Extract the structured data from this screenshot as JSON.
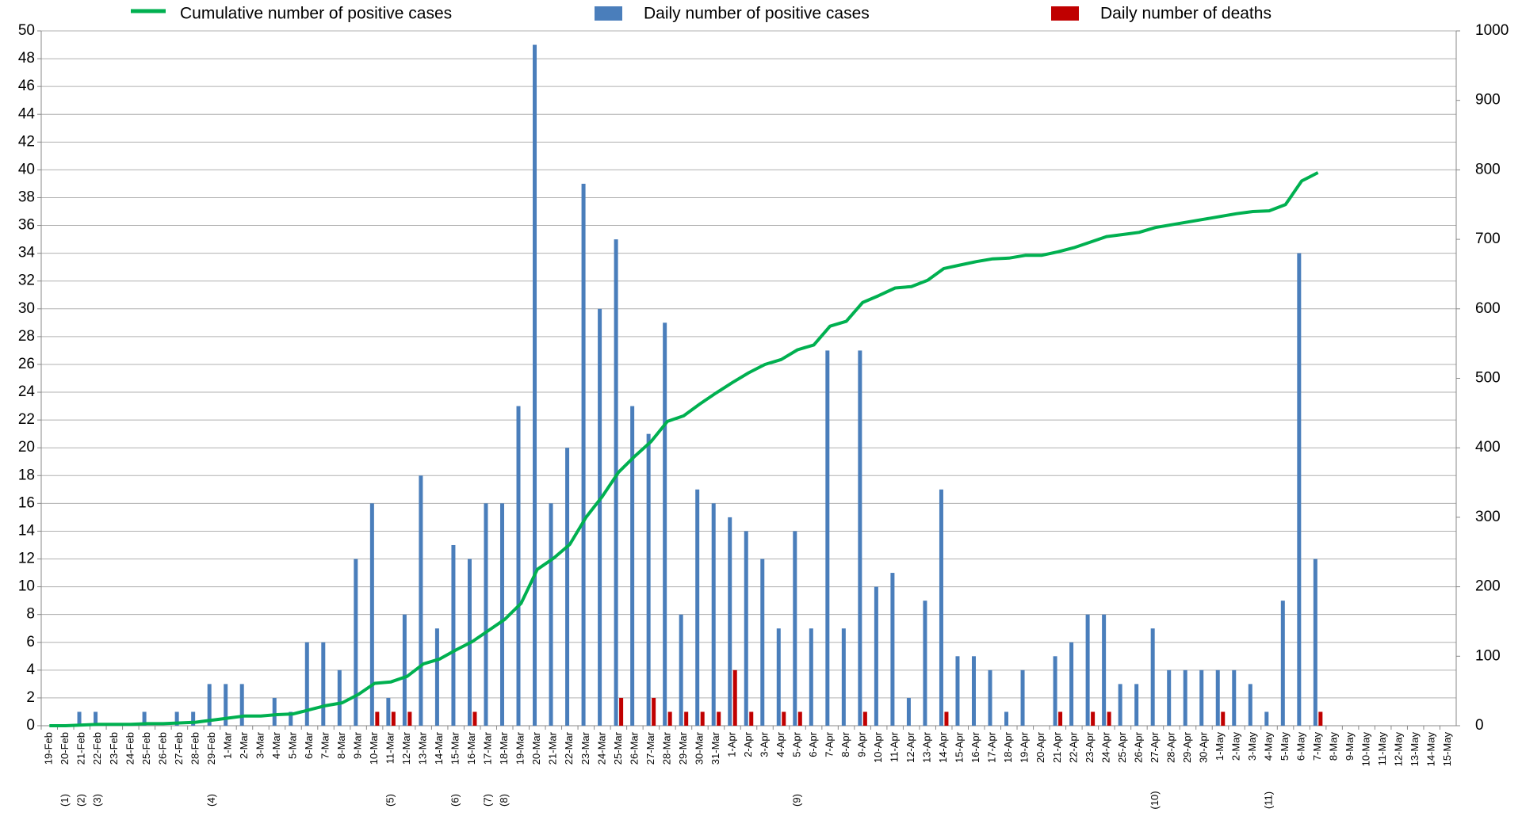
{
  "chart_data": {
    "type": "combo",
    "legend": "top",
    "grid": true,
    "categories": [
      "19-Feb",
      "20-Feb",
      "21-Feb",
      "22-Feb",
      "23-Feb",
      "24-Feb",
      "25-Feb",
      "26-Feb",
      "27-Feb",
      "28-Feb",
      "29-Feb",
      "1-Mar",
      "2-Mar",
      "3-Mar",
      "4-Mar",
      "5-Mar",
      "6-Mar",
      "7-Mar",
      "8-Mar",
      "9-Mar",
      "10-Mar",
      "11-Mar",
      "12-Mar",
      "13-Mar",
      "14-Mar",
      "15-Mar",
      "16-Mar",
      "17-Mar",
      "18-Mar",
      "19-Mar",
      "20-Mar",
      "21-Mar",
      "22-Mar",
      "23-Mar",
      "24-Mar",
      "25-Mar",
      "26-Mar",
      "27-Mar",
      "28-Mar",
      "29-Mar",
      "30-Mar",
      "31-Mar",
      "1-Apr",
      "2-Apr",
      "3-Apr",
      "4-Apr",
      "5-Apr",
      "6-Apr",
      "7-Apr",
      "8-Apr",
      "9-Apr",
      "10-Apr",
      "11-Apr",
      "12-Apr",
      "13-Apr",
      "14-Apr",
      "15-Apr",
      "16-Apr",
      "17-Apr",
      "18-Apr",
      "19-Apr",
      "20-Apr",
      "21-Apr",
      "22-Apr",
      "23-Apr",
      "24-Apr",
      "25-Apr",
      "26-Apr",
      "27-Apr",
      "28-Apr",
      "29-Apr",
      "30-Apr",
      "1-May",
      "2-May",
      "3-May",
      "4-May",
      "5-May",
      "6-May",
      "7-May",
      "8-May",
      "9-May",
      "10-May",
      "11-May",
      "12-May",
      "13-May",
      "14-May",
      "15-May"
    ],
    "annotations": [
      null,
      "(1)",
      "(2)",
      "(3)",
      null,
      null,
      null,
      null,
      null,
      null,
      "(4)",
      null,
      null,
      null,
      null,
      null,
      null,
      null,
      null,
      null,
      null,
      "(5)",
      null,
      null,
      null,
      "(6)",
      null,
      "(7)",
      "(8)",
      null,
      null,
      null,
      null,
      null,
      null,
      null,
      null,
      null,
      null,
      null,
      null,
      null,
      null,
      null,
      null,
      null,
      "(9)",
      null,
      null,
      null,
      null,
      null,
      null,
      null,
      null,
      null,
      null,
      null,
      null,
      null,
      null,
      null,
      null,
      null,
      null,
      null,
      null,
      null,
      "(10)",
      null,
      null,
      null,
      null,
      null,
      null,
      "(11)",
      null,
      null,
      null,
      null,
      null,
      null,
      null,
      null,
      null,
      null,
      null
    ],
    "series": [
      {
        "name": "Cumulative number of positive cases",
        "type": "line",
        "axis": "y2",
        "color": "#00b050",
        "values": [
          0,
          0,
          1,
          2,
          2,
          2,
          3,
          3,
          4,
          5,
          8,
          11,
          14,
          14,
          16,
          17,
          23,
          29,
          33,
          45,
          61,
          63,
          71,
          89,
          96,
          109,
          121,
          137,
          153,
          176,
          225,
          241,
          261,
          300,
          330,
          365,
          388,
          409,
          438,
          446,
          463,
          479,
          494,
          508,
          520,
          527,
          541,
          548,
          575,
          582,
          609,
          619,
          630,
          632,
          641,
          658,
          663,
          668,
          672,
          673,
          677,
          677,
          682,
          688,
          696,
          704,
          707,
          710,
          717,
          721,
          725,
          729,
          733,
          737,
          740,
          741,
          750,
          784,
          796,
          null,
          null,
          null,
          null,
          null,
          null,
          null,
          null
        ]
      },
      {
        "name": "Daily number of positive cases",
        "type": "bar",
        "color": "#4a7ebb",
        "values": [
          0,
          0,
          1,
          1,
          0,
          0,
          1,
          0,
          1,
          1,
          3,
          3,
          3,
          0,
          2,
          1,
          6,
          6,
          4,
          12,
          16,
          2,
          8,
          18,
          7,
          13,
          12,
          16,
          16,
          23,
          49,
          16,
          20,
          39,
          30,
          35,
          23,
          21,
          29,
          8,
          17,
          16,
          15,
          14,
          12,
          7,
          14,
          7,
          27,
          7,
          27,
          10,
          11,
          2,
          9,
          17,
          5,
          5,
          4,
          1,
          4,
          0,
          5,
          6,
          8,
          8,
          3,
          3,
          7,
          4,
          4,
          4,
          4,
          4,
          3,
          1,
          9,
          34,
          12,
          null,
          null,
          null,
          null,
          null,
          null,
          null,
          null
        ]
      },
      {
        "name": "Daily number of deaths",
        "type": "bar",
        "color": "#c00000",
        "values": [
          0,
          0,
          0,
          0,
          0,
          0,
          0,
          0,
          0,
          0,
          0,
          0,
          0,
          0,
          0,
          0,
          0,
          0,
          0,
          0,
          1,
          1,
          1,
          0,
          0,
          0,
          1,
          0,
          0,
          0,
          0,
          0,
          0,
          0,
          0,
          2,
          0,
          2,
          1,
          1,
          1,
          1,
          4,
          1,
          0,
          1,
          1,
          0,
          0,
          0,
          1,
          0,
          0,
          0,
          0,
          1,
          0,
          0,
          0,
          0,
          0,
          0,
          1,
          0,
          1,
          1,
          0,
          0,
          0,
          0,
          0,
          0,
          1,
          0,
          0,
          0,
          0,
          0,
          1,
          null,
          null,
          null,
          null,
          null,
          null,
          null,
          null
        ]
      }
    ],
    "ylim": [
      0,
      50
    ],
    "yticks": [
      0,
      2,
      4,
      6,
      8,
      10,
      12,
      14,
      16,
      18,
      20,
      22,
      24,
      26,
      28,
      30,
      32,
      34,
      36,
      38,
      40,
      42,
      44,
      46,
      48,
      50
    ],
    "y2lim": [
      0,
      1000
    ],
    "y2ticks": [
      0,
      100,
      200,
      300,
      400,
      500,
      600,
      700,
      800,
      900,
      1000
    ]
  }
}
